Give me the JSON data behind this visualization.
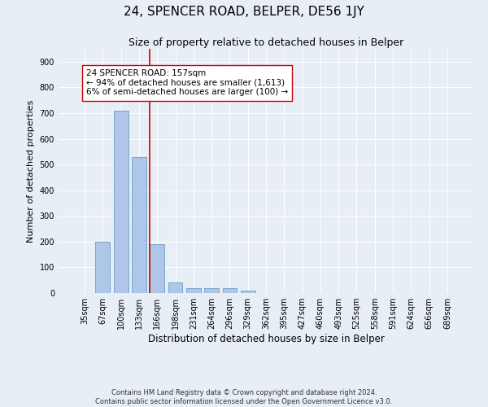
{
  "title": "24, SPENCER ROAD, BELPER, DE56 1JY",
  "subtitle": "Size of property relative to detached houses in Belper",
  "xlabel": "Distribution of detached houses by size in Belper",
  "ylabel": "Number of detached properties",
  "footer_line1": "Contains HM Land Registry data © Crown copyright and database right 2024.",
  "footer_line2": "Contains public sector information licensed under the Open Government Licence v3.0.",
  "categories": [
    "35sqm",
    "67sqm",
    "100sqm",
    "133sqm",
    "166sqm",
    "198sqm",
    "231sqm",
    "264sqm",
    "296sqm",
    "329sqm",
    "362sqm",
    "395sqm",
    "427sqm",
    "460sqm",
    "493sqm",
    "525sqm",
    "558sqm",
    "591sqm",
    "624sqm",
    "656sqm",
    "689sqm"
  ],
  "values": [
    0,
    200,
    710,
    530,
    190,
    40,
    20,
    20,
    20,
    10,
    0,
    0,
    0,
    0,
    0,
    0,
    0,
    0,
    0,
    0,
    0
  ],
  "bar_color": "#aec6e8",
  "bar_edge_color": "#5a8fc0",
  "vline_color": "#cc0000",
  "annotation_text": "24 SPENCER ROAD: 157sqm\n← 94% of detached houses are smaller (1,613)\n6% of semi-detached houses are larger (100) →",
  "annotation_box_color": "white",
  "annotation_box_edge_color": "#cc0000",
  "ylim": [
    0,
    950
  ],
  "yticks": [
    0,
    100,
    200,
    300,
    400,
    500,
    600,
    700,
    800,
    900
  ],
  "bg_color": "#e8eef5",
  "plot_bg_color": "#e8eef5",
  "grid_color": "white",
  "title_fontsize": 11,
  "subtitle_fontsize": 9,
  "xlabel_fontsize": 8.5,
  "ylabel_fontsize": 8,
  "tick_fontsize": 7,
  "annotation_fontsize": 7.5
}
